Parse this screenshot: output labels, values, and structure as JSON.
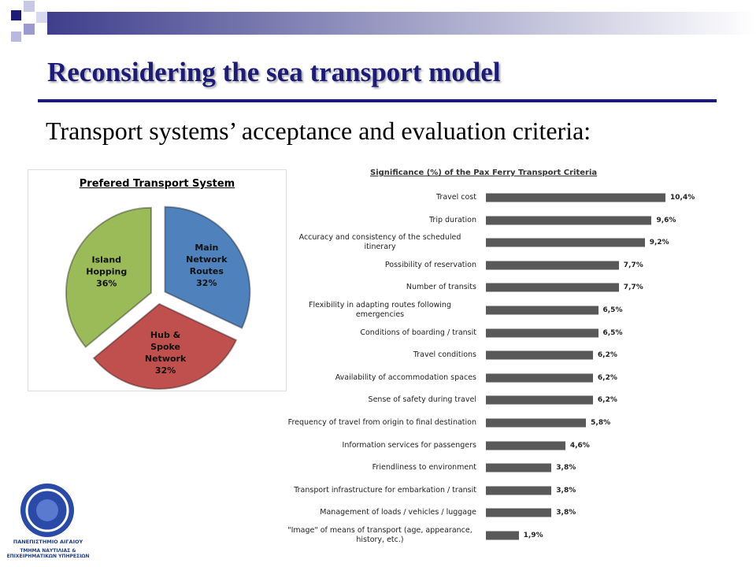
{
  "title": "Reconsidering the sea transport model",
  "subtitle": "Transport systems’ acceptance and evaluation criteria:",
  "logo": {
    "name": "ΠΑΝΕΠΙΣΤΗΜΙΟ ΑΙΓΑΙΟΥ",
    "department": "ΤΜΗΜΑ ΝΑΥΤΙΛΙΑΣ & ΕΠΙΧΕΙΡΗΜΑΤΙΚΩΝ ΥΠΗΡΕΣΙΩΝ"
  },
  "chart_data": [
    {
      "type": "pie",
      "title": "Prefered Transport System",
      "categories": [
        "Main Network Routes",
        "Hub & Spoke Network",
        "Island Hopping"
      ],
      "values": [
        32,
        32,
        36
      ],
      "value_labels": [
        "32%",
        "32%",
        "36%"
      ],
      "colors": [
        "#4f81bd",
        "#c0504d",
        "#9bbb59"
      ]
    },
    {
      "type": "hbar",
      "title": "Significance (%) of the Pax Ferry Transport Criteria",
      "categories": [
        "Travel cost",
        "Trip duration",
        "Accuracy and consistency of the scheduled itinerary",
        "Possibility of reservation",
        "Number of transits",
        "Flexibility in adapting routes following emergencies",
        "Conditions of boarding / transit",
        "Travel conditions",
        "Availability of accommodation spaces",
        "Sense of safety during travel",
        "Frequency of travel from origin to final destination",
        "Information services for passengers",
        "Friendliness to environment",
        "Transport infrastructure for embarkation / transit",
        "Management of loads / vehicles / luggage",
        "\"Image\" of means of transport (age, appearance, history, etc.)"
      ],
      "values": [
        10.4,
        9.6,
        9.2,
        7.7,
        7.7,
        6.5,
        6.5,
        6.2,
        6.2,
        6.2,
        5.8,
        4.6,
        3.8,
        3.8,
        3.8,
        1.9
      ],
      "value_labels": [
        "10,4%",
        "9,6%",
        "9,2%",
        "7,7%",
        "7,7%",
        "6,5%",
        "6,5%",
        "6,2%",
        "6,2%",
        "6,2%",
        "5,8%",
        "4,6%",
        "3,8%",
        "3,8%",
        "3,8%",
        "1,9%"
      ],
      "color": "#595959"
    }
  ]
}
